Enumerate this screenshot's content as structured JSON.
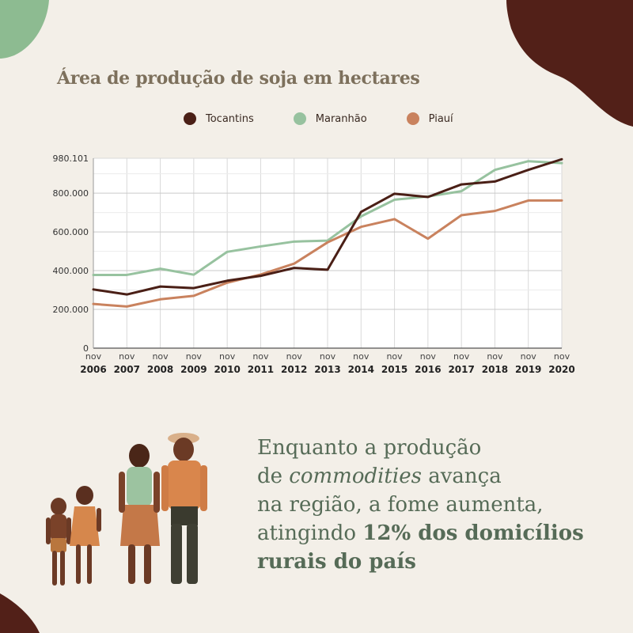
{
  "colors": {
    "background": "#f3efe8",
    "tocantins": "#4a1f16",
    "maranhao": "#97c29f",
    "piaui": "#c9825e",
    "corner_green": "#8dbb91",
    "corner_brown": "#522018"
  },
  "chart_data": {
    "type": "line",
    "title": "Área de produção de soja em hectares",
    "x": [
      2006,
      2007,
      2008,
      2009,
      2010,
      2011,
      2012,
      2013,
      2014,
      2015,
      2016,
      2017,
      2018,
      2019,
      2020
    ],
    "x_tick_top": "nov",
    "x_tick_labels": [
      "2006",
      "2007",
      "2008",
      "2009",
      "2010",
      "2011",
      "2012",
      "2013",
      "2014",
      "2015",
      "2016",
      "2017",
      "2018",
      "2019",
      "2020"
    ],
    "y_ticks": [
      0,
      200000,
      400000,
      600000,
      800000,
      980101
    ],
    "y_tick_labels": [
      "0",
      "200.000",
      "400.000",
      "600.000",
      "800.000",
      "980.101"
    ],
    "ylim": [
      0,
      980101
    ],
    "legend_position": "top",
    "series": [
      {
        "name": "Tocantins",
        "color": "#4a1f16",
        "values": [
          303000,
          277000,
          318000,
          310000,
          348000,
          373000,
          414000,
          405000,
          703000,
          797000,
          780000,
          845000,
          860000,
          920000,
          975000
        ]
      },
      {
        "name": "Maranhão",
        "color": "#97c29f",
        "values": [
          378000,
          378000,
          410000,
          379000,
          497000,
          525000,
          550000,
          555000,
          680000,
          766000,
          783000,
          810000,
          920000,
          965000,
          955000
        ]
      },
      {
        "name": "Piauí",
        "color": "#c9825e",
        "values": [
          228000,
          215000,
          252000,
          270000,
          338000,
          380000,
          436000,
          546000,
          626000,
          666000,
          565000,
          686000,
          708000,
          762000,
          762000
        ]
      }
    ]
  },
  "caption": {
    "line1": "Enquanto a produção",
    "line2_prefix": "de ",
    "line2_italic": "commodities",
    "line2_suffix": " avança",
    "line3": "na região, a fome aumenta,",
    "line4_prefix": "atingindo ",
    "line4_bold": "12% dos domicílios",
    "line5_bold": "rurais do país"
  }
}
